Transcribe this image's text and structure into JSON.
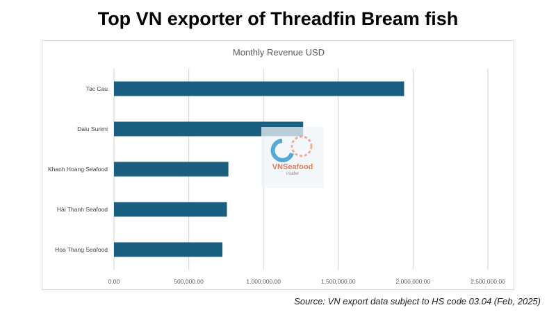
{
  "page": {
    "title": "Top VN exporter of Threadfin Bream fish",
    "source": "Source: VN export data subject to HS code 03.04 (Feb, 2025)"
  },
  "watermark": {
    "brand": "VNSeafood",
    "tagline": "insider",
    "colors": {
      "blue": "#1f8fc9",
      "orange": "#e47b5a"
    }
  },
  "chart_data": {
    "type": "bar",
    "orientation": "horizontal",
    "title": "Monthly Revenue USD",
    "categories": [
      "Tac Cau",
      "Dalu Surimi",
      "Khanh Hoang Seafood",
      "Hải Thanh Seafood",
      "Hoa Thang Seafood"
    ],
    "values": [
      1940000,
      1265000,
      765000,
      755000,
      725000
    ],
    "xlim": [
      0,
      2500000
    ],
    "x_ticks": [
      0,
      500000,
      1000000,
      1500000,
      2000000,
      2500000
    ],
    "x_tick_labels": [
      "0.00",
      "500,000.00",
      "1,000,000.00",
      "1,500,000.00",
      "2,000,000.00",
      "2,500,000.00"
    ],
    "grid": "vertical",
    "bar_color": "#1a5f80",
    "grid_color": "#d9d9d9",
    "legend": "none"
  }
}
